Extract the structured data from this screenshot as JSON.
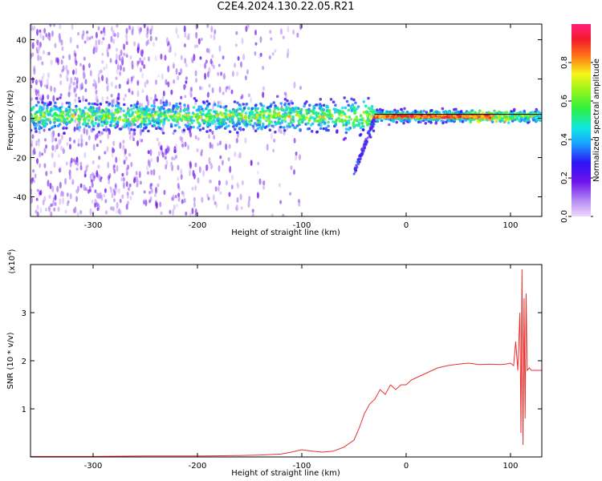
{
  "title": "C2E4.2024.130.22.05.R21",
  "colors": {
    "spectrogram_hue_note": "purple→blue→cyan→green→yellow→red→magenta",
    "snr_line": "#e8312f",
    "axis": "#000000"
  },
  "chart_data": [
    {
      "type": "heatmap",
      "xlabel": "Height of straight line (km)",
      "ylabel": "Frequency (Hz)",
      "xlim": [
        -360,
        130
      ],
      "ylim": [
        -50,
        48
      ],
      "xticks": [
        -300,
        -200,
        -100,
        0,
        100
      ],
      "yticks": [
        -40,
        -20,
        0,
        20,
        40
      ],
      "horizontal_line": {
        "x_start": -30,
        "x_end": 130,
        "y": 2
      },
      "colorbar": {
        "label": "Normalized spectral amplitude",
        "range": [
          0.0,
          1.0
        ],
        "ticks": [
          "0.0",
          "0.2",
          "0.4",
          "0.6",
          "0.8"
        ]
      },
      "features": [
        {
          "description": "scattered low-amplitude speckle",
          "x_range": [
            -360,
            -140
          ],
          "freq_range": [
            -50,
            48
          ],
          "amplitude": 0.1
        },
        {
          "description": "main tone band",
          "x_range": [
            -360,
            130
          ],
          "freq_center": 1,
          "amplitude_range": [
            0.15,
            0.95
          ]
        },
        {
          "description": "descending tail",
          "x_range": [
            -50,
            -30
          ],
          "freq_range": [
            -28,
            0
          ],
          "amplitude": 0.15
        },
        {
          "description": "strong narrow tone",
          "x_range": [
            -30,
            80
          ],
          "freq_center": 1,
          "amplitude": 0.9
        }
      ]
    },
    {
      "type": "line",
      "xlabel": "Height of straight line (km)",
      "ylabel": "SNR (10 * v/v)",
      "y_multiplier": "(x10",
      "y_multiplier_exp": "4",
      "multiplier_suffix": ")",
      "xlim": [
        -360,
        130
      ],
      "ylim": [
        0,
        4
      ],
      "xticks": [
        -300,
        -200,
        -100,
        0,
        100
      ],
      "yticks": [
        1,
        2,
        3
      ],
      "series": [
        {
          "x": [
            -360,
            -300,
            -250,
            -200,
            -160,
            -140,
            -120,
            -110,
            -100,
            -90,
            -80,
            -70,
            -60,
            -50,
            -45,
            -40,
            -35,
            -30,
            -25,
            -20,
            -15,
            -10,
            -5,
            0,
            5,
            10,
            15,
            20,
            30,
            40,
            50,
            60,
            70,
            80,
            90,
            95,
            100,
            103,
            105,
            107,
            109,
            110,
            111,
            112,
            113,
            114,
            115,
            116,
            118,
            120,
            125,
            130
          ],
          "y": [
            0.01,
            0.01,
            0.02,
            0.02,
            0.03,
            0.04,
            0.06,
            0.1,
            0.15,
            0.12,
            0.1,
            0.12,
            0.2,
            0.35,
            0.6,
            0.9,
            1.1,
            1.2,
            1.4,
            1.3,
            1.5,
            1.4,
            1.5,
            1.5,
            1.6,
            1.65,
            1.7,
            1.75,
            1.85,
            1.9,
            1.93,
            1.95,
            1.92,
            1.93,
            1.92,
            1.93,
            1.95,
            1.9,
            2.4,
            1.8,
            3.0,
            0.5,
            3.9,
            0.25,
            3.3,
            0.8,
            3.4,
            1.8,
            1.85,
            1.8,
            1.8,
            1.8
          ]
        }
      ]
    }
  ]
}
